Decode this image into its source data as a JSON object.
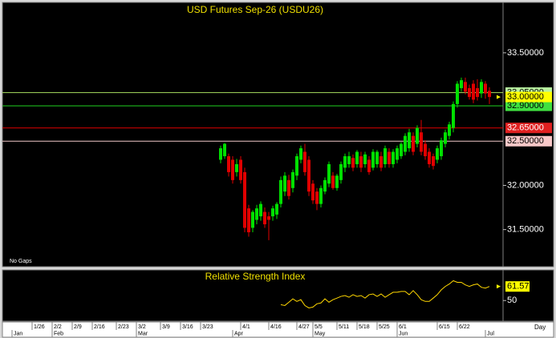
{
  "chart_data": [
    {
      "type": "candlestick",
      "title": "USD Futures Sep-26 (USDU26)",
      "note": "No Gaps",
      "x_unit_label": "Day",
      "x": [
        47,
        48,
        49,
        50,
        51,
        52,
        53,
        54,
        55,
        56,
        57,
        58,
        59,
        60,
        61,
        62,
        63,
        64,
        65,
        66,
        67,
        68,
        69,
        70,
        71,
        72,
        73,
        74,
        75,
        76,
        77,
        78,
        79,
        80,
        81,
        82,
        83,
        84,
        85,
        86,
        87,
        88,
        89,
        90,
        91,
        92,
        93,
        94,
        95,
        96,
        97,
        98,
        99,
        100,
        101,
        102,
        103,
        104,
        105,
        106,
        107,
        108,
        109,
        110,
        111,
        112,
        113,
        114
      ],
      "open": [
        32.29,
        32.33,
        32.33,
        32.29,
        32.15,
        32.29,
        32.15,
        31.74,
        31.52,
        31.61,
        31.65,
        31.7,
        31.65,
        31.65,
        31.67,
        31.79,
        31.93,
        32.06,
        31.97,
        32.11,
        32.29,
        32.38,
        32.29,
        32.02,
        31.93,
        31.79,
        31.93,
        32.02,
        32.11,
        31.97,
        32.06,
        32.2,
        32.24,
        32.31,
        32.24,
        32.33,
        32.24,
        32.29,
        32.2,
        32.24,
        32.33,
        32.24,
        32.38,
        32.24,
        32.29,
        32.33,
        32.38,
        32.42,
        32.56,
        32.47,
        32.6,
        32.47,
        32.38,
        32.33,
        32.29,
        32.33,
        32.47,
        32.56,
        32.65,
        32.92,
        33.1,
        33.17,
        33.1,
        33.15,
        33.1,
        33.04,
        33.15,
        33.07
      ],
      "high": [
        32.45,
        32.48,
        32.36,
        32.33,
        32.3,
        32.33,
        32.2,
        31.78,
        31.72,
        31.78,
        31.82,
        31.75,
        31.7,
        31.77,
        31.81,
        32.1,
        32.15,
        32.12,
        32.18,
        32.36,
        32.45,
        32.47,
        32.33,
        32.06,
        31.97,
        32.0,
        32.09,
        32.27,
        32.15,
        32.13,
        32.27,
        32.36,
        32.38,
        32.35,
        32.4,
        32.38,
        32.38,
        32.33,
        32.41,
        32.4,
        32.38,
        32.45,
        32.42,
        32.41,
        32.45,
        32.49,
        32.59,
        32.64,
        32.6,
        32.68,
        32.74,
        32.51,
        32.42,
        32.36,
        32.45,
        32.54,
        32.63,
        32.72,
        32.95,
        33.18,
        33.22,
        33.22,
        33.14,
        33.19,
        33.2,
        33.2,
        33.18,
        33.11
      ],
      "low": [
        32.25,
        32.3,
        32.1,
        32.02,
        32.1,
        32.02,
        31.47,
        31.42,
        31.47,
        31.56,
        31.6,
        31.52,
        31.38,
        31.6,
        31.62,
        31.75,
        31.88,
        31.84,
        31.92,
        32.06,
        32.25,
        32.11,
        31.88,
        31.79,
        31.72,
        31.75,
        31.9,
        31.98,
        31.95,
        31.94,
        32.02,
        32.15,
        32.2,
        32.16,
        32.2,
        32.15,
        32.2,
        32.12,
        32.17,
        32.2,
        32.16,
        32.2,
        32.2,
        32.2,
        32.25,
        32.3,
        32.34,
        32.38,
        32.34,
        32.43,
        32.34,
        32.29,
        32.2,
        32.18,
        32.25,
        32.29,
        32.43,
        32.52,
        32.6,
        32.88,
        33.06,
        33.03,
        32.97,
        32.93,
        32.96,
        32.99,
        32.98,
        32.92
      ],
      "close": [
        32.42,
        32.47,
        32.15,
        32.06,
        32.24,
        32.06,
        31.52,
        31.47,
        31.7,
        31.74,
        31.79,
        31.56,
        31.61,
        31.74,
        31.79,
        32.06,
        32.11,
        31.88,
        32.15,
        32.33,
        32.42,
        32.15,
        31.93,
        31.83,
        31.79,
        31.97,
        32.06,
        32.24,
        31.97,
        32.11,
        32.24,
        32.33,
        32.33,
        32.2,
        32.38,
        32.2,
        32.35,
        32.15,
        32.38,
        32.38,
        32.2,
        32.42,
        32.24,
        32.38,
        32.42,
        32.47,
        32.56,
        32.6,
        32.38,
        32.65,
        32.38,
        32.33,
        32.24,
        32.22,
        32.42,
        32.51,
        32.6,
        32.69,
        32.92,
        33.15,
        33.19,
        33.06,
        33.0,
        32.97,
        33.0,
        33.17,
        33.04,
        33.0
      ],
      "up_color": "#00e000",
      "down_color": "#e00000",
      "xlim": [
        -7.4,
        117.4
      ],
      "ylim": [
        31.08,
        34.07
      ],
      "yticks": [
        {
          "value": 31.5,
          "label": "31.50000"
        },
        {
          "value": 32.0,
          "label": "32.00000"
        },
        {
          "value": 33.5,
          "label": "33.50000"
        }
      ],
      "levels": [
        {
          "value": 33.05,
          "label": "33.05000",
          "color": "#a8e060",
          "box_color": "#b8f0a0",
          "text_color": "#000000"
        },
        {
          "value": 32.9,
          "label": "32.90000",
          "color": "#20d020",
          "box_color": "#40e040",
          "text_color": "#000000"
        },
        {
          "value": 32.65,
          "label": "32.65000",
          "color": "#e00000",
          "box_color": "#e02020",
          "text_color": "#ffffff"
        },
        {
          "value": 32.5,
          "label": "32.50000",
          "color": "#f0c8c8",
          "box_color": "#f8c8c8",
          "text_color": "#000000"
        }
      ],
      "last": {
        "value": 33.0,
        "label": "33.00000",
        "box_color": "#ffff00"
      },
      "xticks": [
        {
          "value": 0,
          "label": "1/26"
        },
        {
          "value": 5,
          "label": "2/2"
        },
        {
          "value": 10,
          "label": "2/9"
        },
        {
          "value": 15,
          "label": "2/16"
        },
        {
          "value": 21,
          "label": "2/23"
        },
        {
          "value": 26,
          "label": "3/2"
        },
        {
          "value": 32,
          "label": "3/9"
        },
        {
          "value": 37,
          "label": "3/16"
        },
        {
          "value": 42,
          "label": "3/23"
        },
        {
          "value": 52,
          "label": "4/1"
        },
        {
          "value": 59,
          "label": "4/16"
        },
        {
          "value": 66,
          "label": "4/27"
        },
        {
          "value": 70,
          "label": "5/5"
        },
        {
          "value": 76,
          "label": "5/11"
        },
        {
          "value": 81,
          "label": "5/18"
        },
        {
          "value": 86,
          "label": "5/25"
        },
        {
          "value": 91,
          "label": "6/1"
        },
        {
          "value": 101,
          "label": "6/15"
        },
        {
          "value": 106,
          "label": "6/22"
        }
      ],
      "month_ticks": [
        {
          "value": -5,
          "label": "Jan"
        },
        {
          "value": 5,
          "label": "Feb"
        },
        {
          "value": 26,
          "label": "Mar"
        },
        {
          "value": 50,
          "label": "Apr"
        },
        {
          "value": 70,
          "label": "May"
        },
        {
          "value": 91,
          "label": "Jun"
        },
        {
          "value": 113,
          "label": "Jul"
        }
      ]
    },
    {
      "type": "line",
      "title": "Relative Strength Index",
      "color": "#ffd700",
      "x": [
        62,
        63,
        64,
        65,
        66,
        67,
        68,
        69,
        70,
        71,
        72,
        73,
        74,
        75,
        76,
        77,
        78,
        79,
        80,
        81,
        82,
        83,
        84,
        85,
        86,
        87,
        88,
        89,
        90,
        91,
        92,
        93,
        94,
        95,
        96,
        97,
        98,
        99,
        100,
        101,
        102,
        103,
        104,
        105,
        106,
        107,
        108,
        109,
        110,
        111,
        112,
        113,
        114
      ],
      "values": [
        46.6,
        45.9,
        48.6,
        51.4,
        49.3,
        50.7,
        45.9,
        43.9,
        44.6,
        47.3,
        48.0,
        51.4,
        48.6,
        50.7,
        52.0,
        53.4,
        54.1,
        52.7,
        54.8,
        53.4,
        54.1,
        52.0,
        54.8,
        55.4,
        53.4,
        55.4,
        52.7,
        54.8,
        56.8,
        56.8,
        57.5,
        57.5,
        54.8,
        58.2,
        54.8,
        50.7,
        49.3,
        49.3,
        52.0,
        54.8,
        58.8,
        61.6,
        63.6,
        66.3,
        65.0,
        65.0,
        62.9,
        61.6,
        62.9,
        63.6,
        60.9,
        60.2,
        61.57
      ],
      "last_value": 61.57,
      "last_box_color": "#ffff00",
      "xlim": [
        -7.4,
        117.4
      ],
      "ylim": [
        33,
        75.2
      ],
      "yticks": [
        50
      ]
    }
  ]
}
